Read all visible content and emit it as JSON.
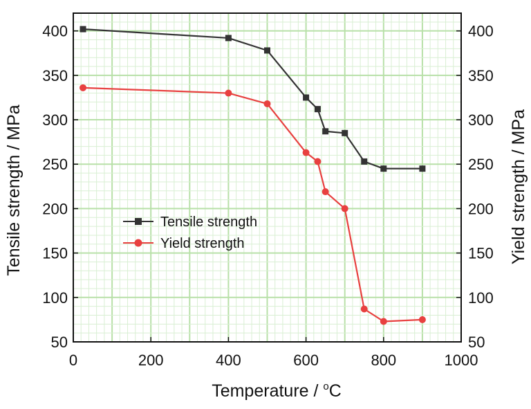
{
  "colors": {
    "background": "#ffffff",
    "minor_grid": "#d9efd3",
    "major_grid": "#b8e0a8",
    "frame": "#111111",
    "tensile": "#333333",
    "yield": "#e8403f"
  },
  "chart_data": {
    "type": "line",
    "xlabel_main": "Temperature / ",
    "xlabel_unit_sup": "o",
    "xlabel_unit": "C",
    "ylabel_left": "Tensile strength / MPa",
    "ylabel_right": "Yield strength / MPa",
    "xlim": [
      0,
      1000
    ],
    "ylim": [
      50,
      420
    ],
    "x_ticks": [
      0,
      200,
      400,
      600,
      800,
      1000
    ],
    "y_ticks": [
      50,
      100,
      150,
      200,
      250,
      300,
      350,
      400
    ],
    "grid": true,
    "legend_position": "center-left",
    "series": [
      {
        "name": "Tensile strength",
        "marker": "square",
        "color": "#333333",
        "x": [
          25,
          400,
          500,
          600,
          630,
          650,
          700,
          750,
          800,
          900
        ],
        "y": [
          402,
          392,
          378,
          325,
          312,
          287,
          285,
          253,
          245,
          245
        ]
      },
      {
        "name": "Yield strength",
        "marker": "circle",
        "color": "#e8403f",
        "x": [
          25,
          400,
          500,
          600,
          630,
          650,
          700,
          750,
          800,
          900
        ],
        "y": [
          336,
          330,
          318,
          263,
          253,
          219,
          200,
          87,
          73,
          75
        ]
      }
    ]
  }
}
